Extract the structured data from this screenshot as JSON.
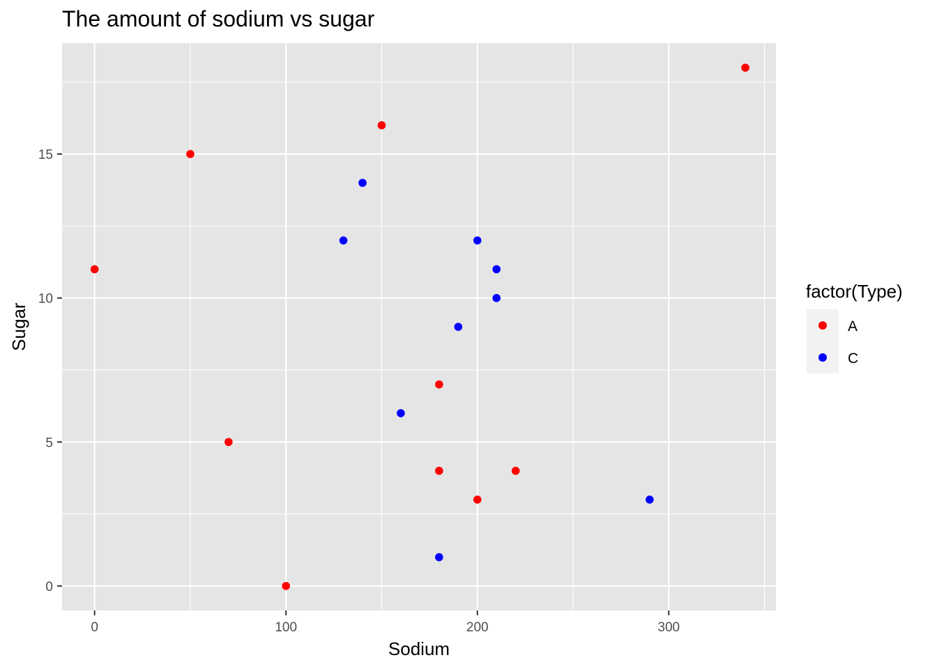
{
  "chart_data": {
    "type": "scatter",
    "title": "The amount of sodium vs sugar",
    "xlabel": "Sodium",
    "ylabel": "Sugar",
    "xlim": [
      -17,
      356
    ],
    "ylim": [
      -0.85,
      18.85
    ],
    "x_ticks": [
      0,
      100,
      200,
      300
    ],
    "x_minor_ticks": [
      50,
      150,
      250,
      350
    ],
    "y_ticks": [
      0,
      5,
      10,
      15
    ],
    "y_minor_ticks": [
      2.5,
      7.5,
      12.5,
      17.5
    ],
    "x_tick_labels": [
      "0",
      "100",
      "200",
      "300"
    ],
    "y_tick_labels": [
      "0",
      "5",
      "10",
      "15"
    ],
    "grid": true,
    "panel_background": "#e5e5e5",
    "legend": {
      "title": "factor(Type)",
      "position": "right",
      "entries": [
        {
          "label": "A",
          "color": "#ff0000"
        },
        {
          "label": "C",
          "color": "#0000ff"
        }
      ]
    },
    "series": [
      {
        "name": "A",
        "color": "#ff0000",
        "points": [
          {
            "x": 0,
            "y": 11
          },
          {
            "x": 50,
            "y": 15
          },
          {
            "x": 70,
            "y": 5
          },
          {
            "x": 100,
            "y": 0
          },
          {
            "x": 150,
            "y": 16
          },
          {
            "x": 180,
            "y": 7
          },
          {
            "x": 180,
            "y": 4
          },
          {
            "x": 200,
            "y": 3
          },
          {
            "x": 220,
            "y": 4
          },
          {
            "x": 340,
            "y": 18
          }
        ]
      },
      {
        "name": "C",
        "color": "#0000ff",
        "points": [
          {
            "x": 130,
            "y": 12
          },
          {
            "x": 140,
            "y": 14
          },
          {
            "x": 160,
            "y": 6
          },
          {
            "x": 180,
            "y": 1
          },
          {
            "x": 190,
            "y": 9
          },
          {
            "x": 200,
            "y": 12
          },
          {
            "x": 210,
            "y": 11
          },
          {
            "x": 210,
            "y": 10
          },
          {
            "x": 290,
            "y": 3
          }
        ]
      }
    ]
  }
}
